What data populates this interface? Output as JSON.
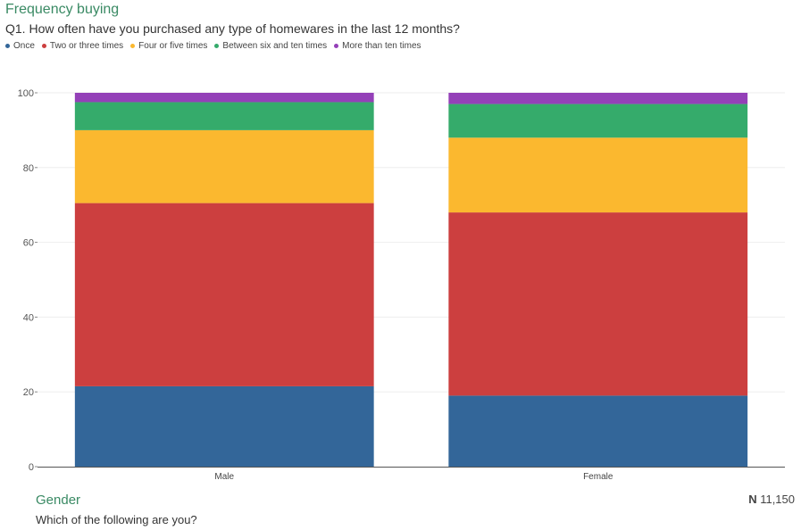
{
  "header": {
    "title": "Frequency buying",
    "question": "Q1. How often have you purchased any type of homewares in the last 12 months?"
  },
  "footer": {
    "title": "Gender",
    "question": "Which of the following are you?",
    "sample_label": "N",
    "sample_value": "11,150"
  },
  "chart_data": {
    "type": "bar",
    "stacked": true,
    "categories": [
      "Male",
      "Female"
    ],
    "series": [
      {
        "name": "Once",
        "color": "#336699",
        "values": [
          21.5,
          19
        ]
      },
      {
        "name": "Two or three times",
        "color": "#cc3f3f",
        "values": [
          49,
          49
        ]
      },
      {
        "name": "Four or five times",
        "color": "#fbb82f",
        "values": [
          19.5,
          20
        ]
      },
      {
        "name": "Between six and ten times",
        "color": "#35ab6b",
        "values": [
          7.5,
          9
        ]
      },
      {
        "name": "More than ten times",
        "color": "#9440b8",
        "values": [
          2.5,
          3
        ]
      }
    ],
    "ylim": [
      0,
      100
    ],
    "yticks": [
      0,
      20,
      40,
      60,
      80,
      100
    ],
    "grid": true,
    "legend_position": "top-left"
  }
}
